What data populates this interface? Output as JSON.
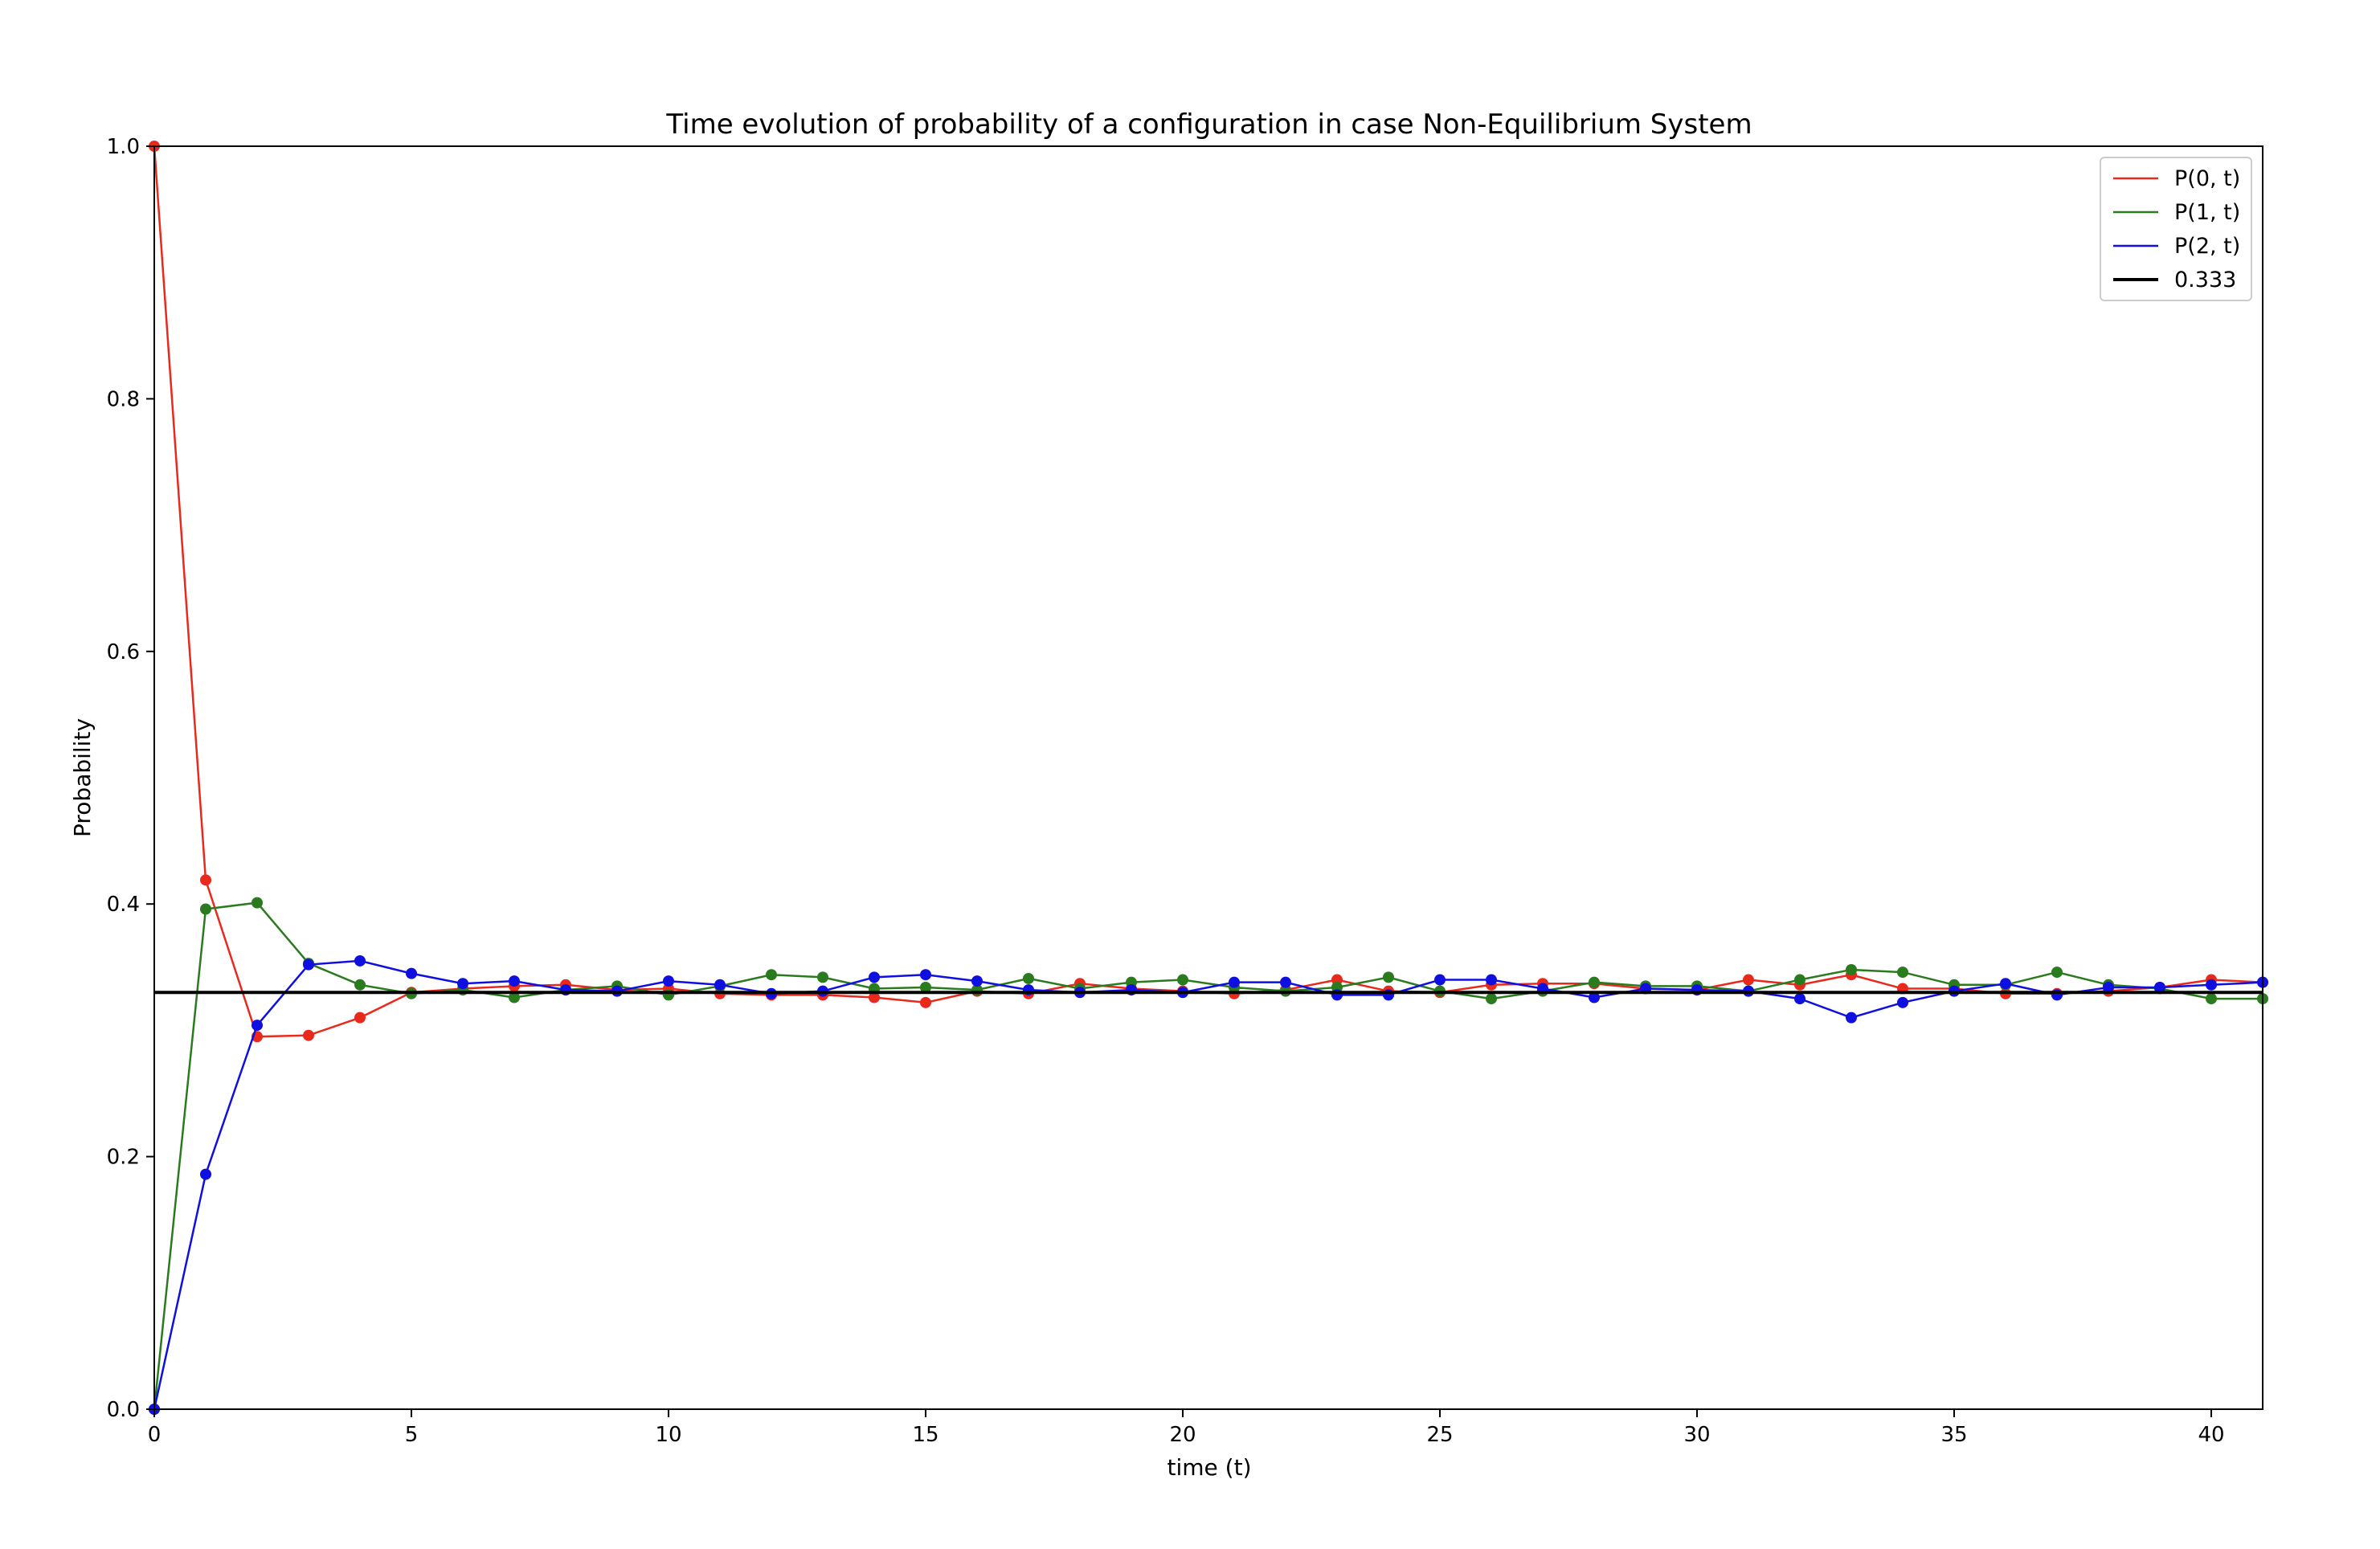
{
  "chart_data": {
    "type": "line",
    "title": "Time evolution of probability of a configuration in case Non-Equilibrium System",
    "xlabel": "time (t)",
    "ylabel": "Probability",
    "xlim": [
      0,
      41
    ],
    "ylim": [
      0,
      1.0
    ],
    "x_ticks": [
      0,
      5,
      10,
      15,
      20,
      25,
      30,
      35,
      40
    ],
    "y_ticks": [
      0.0,
      0.2,
      0.4,
      0.6,
      0.8,
      1.0
    ],
    "x_tick_labels": [
      "0",
      "5",
      "10",
      "15",
      "20",
      "25",
      "30",
      "35",
      "40"
    ],
    "y_tick_labels": [
      "0.0",
      "0.2",
      "0.4",
      "0.6",
      "0.8",
      "1.0"
    ],
    "grid": false,
    "legend_position": "top-right",
    "x": [
      0,
      1,
      2,
      3,
      4,
      5,
      6,
      7,
      8,
      9,
      10,
      11,
      12,
      13,
      14,
      15,
      16,
      17,
      18,
      19,
      20,
      21,
      22,
      23,
      24,
      25,
      26,
      27,
      28,
      29,
      30,
      31,
      32,
      33,
      34,
      35,
      36,
      37,
      38,
      39,
      40,
      41
    ],
    "series": [
      {
        "name": "P(0, t)",
        "color": "#e8291c",
        "values": [
          1.0,
          0.419,
          0.295,
          0.296,
          0.31,
          0.33,
          0.333,
          0.335,
          0.336,
          0.332,
          0.333,
          0.329,
          0.328,
          0.328,
          0.326,
          0.322,
          0.331,
          0.329,
          0.337,
          0.333,
          0.331,
          0.329,
          0.332,
          0.34,
          0.331,
          0.33,
          0.336,
          0.337,
          0.337,
          0.333,
          0.332,
          0.34,
          0.336,
          0.344,
          0.333,
          0.333,
          0.329,
          0.329,
          0.331,
          0.334,
          0.34,
          0.338
        ]
      },
      {
        "name": "P(1, t)",
        "color": "#2a7a1e",
        "values": [
          0.0,
          0.396,
          0.401,
          0.353,
          0.336,
          0.329,
          0.332,
          0.326,
          0.332,
          0.335,
          0.328,
          0.335,
          0.344,
          0.342,
          0.333,
          0.334,
          0.332,
          0.341,
          0.333,
          0.338,
          0.34,
          0.334,
          0.331,
          0.334,
          0.342,
          0.331,
          0.325,
          0.331,
          0.338,
          0.335,
          0.335,
          0.331,
          0.34,
          0.348,
          0.346,
          0.336,
          0.336,
          0.346,
          0.336,
          0.333,
          0.325,
          0.325
        ]
      },
      {
        "name": "P(2, t)",
        "color": "#0f0fe0",
        "values": [
          0.0,
          0.186,
          0.304,
          0.352,
          0.355,
          0.345,
          0.337,
          0.339,
          0.332,
          0.331,
          0.339,
          0.336,
          0.329,
          0.331,
          0.342,
          0.344,
          0.339,
          0.332,
          0.33,
          0.332,
          0.33,
          0.338,
          0.338,
          0.328,
          0.328,
          0.34,
          0.34,
          0.333,
          0.326,
          0.333,
          0.332,
          0.331,
          0.325,
          0.31,
          0.322,
          0.331,
          0.337,
          0.328,
          0.334,
          0.334,
          0.336,
          0.338
        ]
      }
    ],
    "reference_line": {
      "name": "0.333",
      "value": 0.33,
      "color": "#000000"
    }
  }
}
